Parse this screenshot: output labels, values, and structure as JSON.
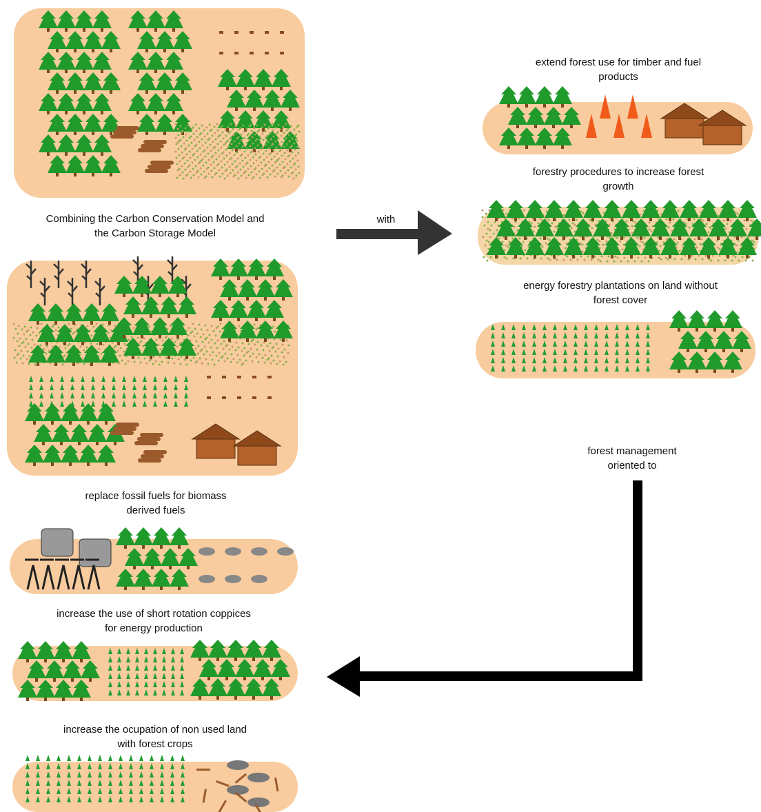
{
  "diagram": {
    "intro": {
      "lines": [
        "Combining the Carbon Conservation Model and",
        "the Carbon Storage Model"
      ]
    },
    "connector": "with",
    "management": {
      "lines": [
        "forest management",
        "oriented to"
      ]
    },
    "strategies": [
      {
        "lines": [
          "extend forest use for timber and fuel",
          "products"
        ]
      },
      {
        "lines": [
          "forestry procedures to increase forest",
          "growth"
        ]
      },
      {
        "lines": [
          "energy forestry plantations on land without",
          "forest cover"
        ]
      },
      {
        "lines": [
          "replace fossil fuels for biomass",
          "derived fuels"
        ]
      },
      {
        "lines": [
          "increase the use of short rotation coppices",
          "for energy production"
        ]
      },
      {
        "lines": [
          "increase the ocupation of non used land",
          "with forest crops"
        ]
      }
    ]
  }
}
